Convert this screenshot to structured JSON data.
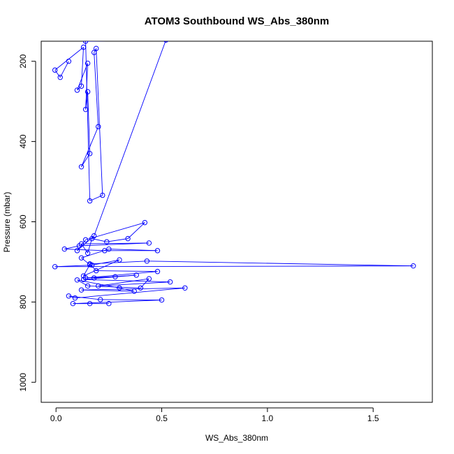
{
  "chart_data": {
    "type": "scatter",
    "title": "ATOM3 Southbound WS_Abs_380nm",
    "xlabel": "WS_Abs_380nm",
    "ylabel": "Pressure (mbar)",
    "xlim": [
      -0.07,
      1.78
    ],
    "ylim": [
      1050,
      150
    ],
    "y_reversed": true,
    "x_ticks": [
      "0.0",
      "0.5",
      "1.0",
      "1.5"
    ],
    "x_tick_values": [
      0,
      0.5,
      1.0,
      1.5
    ],
    "y_ticks": [
      "200",
      "400",
      "600",
      "800",
      "1000"
    ],
    "y_tick_values": [
      200,
      400,
      600,
      800,
      1000
    ],
    "grid": false,
    "color": "#0000ff",
    "series": [
      {
        "x": [
          0.06,
          0.02,
          -0.005,
          0.13,
          0.12,
          0.1,
          0.15,
          0.14,
          0.15,
          0.16,
          0.12,
          0.2,
          0.18,
          0.19,
          0.22,
          0.16,
          0.14,
          0.52,
          0.18,
          0.1,
          0.14,
          0.42,
          0.34,
          0.24,
          0.17,
          0.15,
          0.12,
          0.44,
          0.11,
          0.04,
          0.23,
          0.48,
          0.25,
          0.12,
          0.16,
          0.13,
          0.3,
          0.17,
          -0.005,
          1.69,
          0.43,
          0.16,
          0.19,
          0.48,
          0.14,
          0.28,
          0.18,
          0.38,
          0.13,
          0.54,
          0.2,
          0.44,
          0.4,
          0.15,
          0.1,
          0.3,
          0.37,
          0.12,
          0.61,
          0.09,
          0.06,
          0.21,
          0.5,
          0.08,
          0.16,
          0.25
        ],
        "y": [
          200,
          240,
          222,
          165,
          262,
          272,
          205,
          320,
          276,
          430,
          463,
          363,
          178,
          168,
          534,
          548,
          150,
          147,
          635,
          672,
          645,
          602,
          642,
          650,
          642,
          678,
          655,
          653,
          660,
          668,
          672,
          672,
          668,
          690,
          707,
          735,
          695,
          708,
          712,
          710,
          698,
          705,
          722,
          724,
          740,
          737,
          740,
          733,
          744,
          750,
          760,
          742,
          765,
          760,
          745,
          765,
          773,
          770,
          765,
          790,
          785,
          794,
          795,
          804,
          804,
          804
        ]
      }
    ]
  }
}
